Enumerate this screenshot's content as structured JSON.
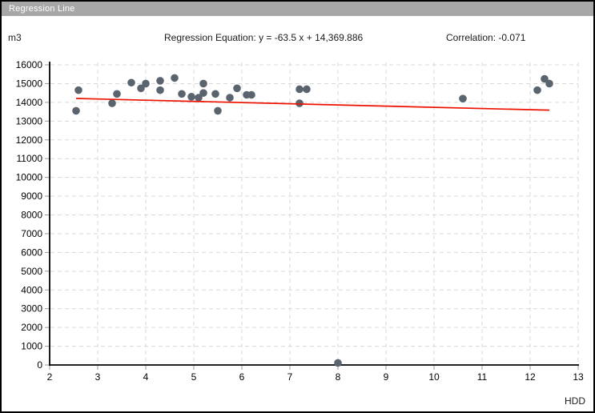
{
  "window": {
    "title": "Regression Line"
  },
  "header": {
    "y_unit_label": "m3",
    "equation_label": "Regression Equation: y = -63.5 x + 14,369.886",
    "correlation_label": "Correlation: -0.071"
  },
  "chart_data": {
    "type": "scatter",
    "title": "",
    "xlabel": "HDD",
    "ylabel": "m3",
    "xlim": [
      2,
      13
    ],
    "ylim": [
      0,
      16000
    ],
    "x_ticks": [
      2,
      3,
      4,
      5,
      6,
      7,
      8,
      9,
      10,
      11,
      12,
      13
    ],
    "y_ticks": [
      0,
      1000,
      2000,
      3000,
      4000,
      5000,
      6000,
      7000,
      8000,
      9000,
      10000,
      11000,
      12000,
      13000,
      14000,
      15000,
      16000
    ],
    "grid": true,
    "legend": "none",
    "points": [
      [
        2.55,
        13550
      ],
      [
        2.6,
        14650
      ],
      [
        3.3,
        13950
      ],
      [
        3.4,
        14450
      ],
      [
        3.7,
        15050
      ],
      [
        3.9,
        14750
      ],
      [
        4.0,
        15000
      ],
      [
        4.3,
        15150
      ],
      [
        4.3,
        14650
      ],
      [
        4.6,
        15300
      ],
      [
        4.75,
        14450
      ],
      [
        4.95,
        14300
      ],
      [
        5.1,
        14250
      ],
      [
        5.2,
        15000
      ],
      [
        5.2,
        14500
      ],
      [
        5.45,
        14450
      ],
      [
        5.5,
        13550
      ],
      [
        5.75,
        14250
      ],
      [
        5.9,
        14750
      ],
      [
        6.1,
        14400
      ],
      [
        6.2,
        14400
      ],
      [
        7.2,
        14700
      ],
      [
        7.35,
        14700
      ],
      [
        7.2,
        13950
      ],
      [
        8.0,
        110
      ],
      [
        10.6,
        14200
      ],
      [
        12.15,
        14650
      ],
      [
        12.3,
        15250
      ],
      [
        12.4,
        15000
      ]
    ],
    "regression": {
      "slope": -63.5,
      "intercept": 14369.886,
      "correlation": -0.071,
      "x_start": 2.55,
      "x_end": 12.4
    },
    "colors": {
      "point": "#5a646e",
      "regression_line": "#ee1100",
      "grid": "#d9d9d9",
      "axis": "#000000",
      "tick": "#9a9a9a",
      "titlebar_bg": "#a7a7a7",
      "titlebar_text": "#ffffff"
    }
  }
}
